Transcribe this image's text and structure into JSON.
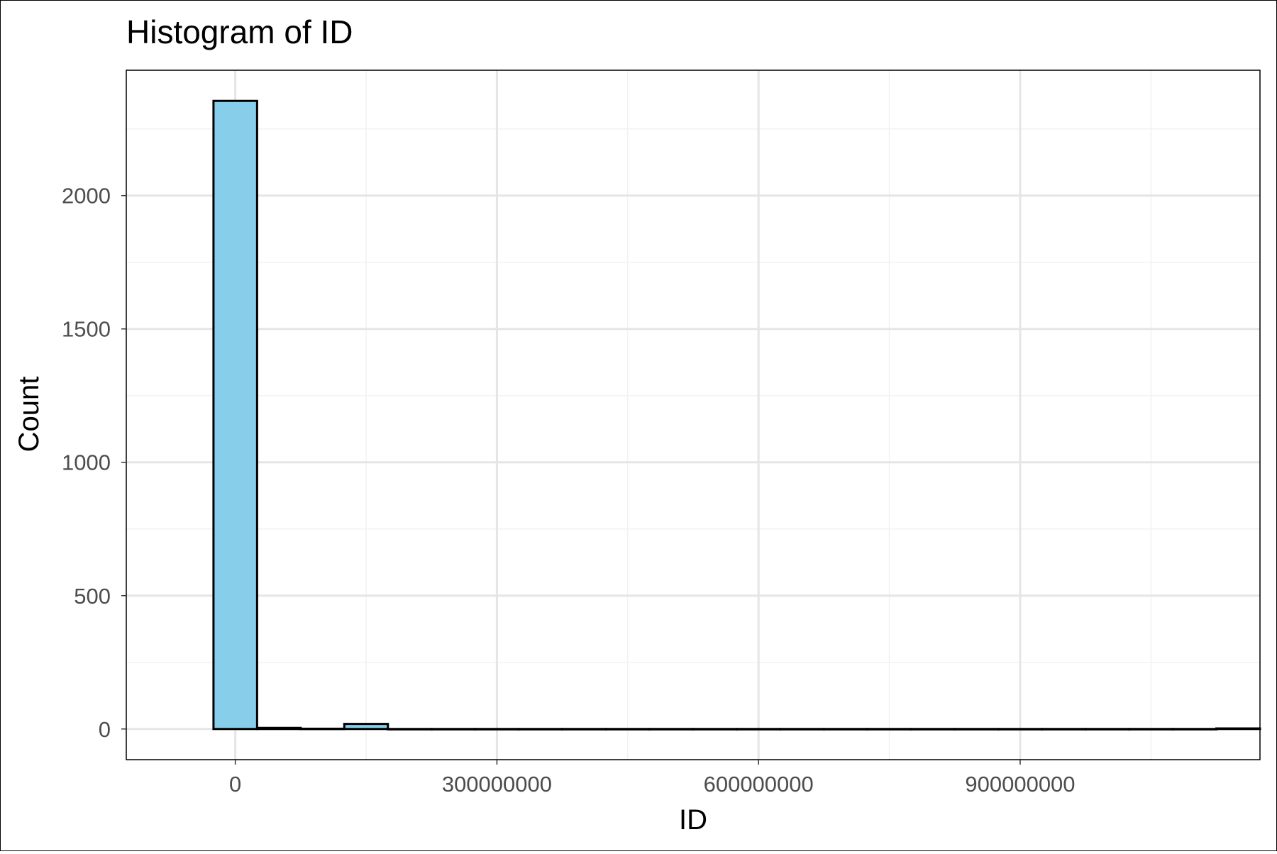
{
  "chart_data": {
    "type": "bar",
    "subtype": "histogram",
    "title": "Histogram of ID",
    "xlabel": "ID",
    "ylabel": "Count",
    "bin_width": 50000000,
    "bins": [
      {
        "x0": -25000000,
        "x1": 25000000,
        "count": 2355
      },
      {
        "x0": 25000000,
        "x1": 75000000,
        "count": 4
      },
      {
        "x0": 75000000,
        "x1": 125000000,
        "count": 1
      },
      {
        "x0": 125000000,
        "x1": 175000000,
        "count": 19
      },
      {
        "x0": 175000000,
        "x1": 225000000,
        "count": 0
      },
      {
        "x0": 225000000,
        "x1": 275000000,
        "count": 0
      },
      {
        "x0": 275000000,
        "x1": 325000000,
        "count": 0
      },
      {
        "x0": 325000000,
        "x1": 375000000,
        "count": 0
      },
      {
        "x0": 375000000,
        "x1": 425000000,
        "count": 0
      },
      {
        "x0": 425000000,
        "x1": 475000000,
        "count": 0
      },
      {
        "x0": 475000000,
        "x1": 525000000,
        "count": 0
      },
      {
        "x0": 525000000,
        "x1": 575000000,
        "count": 0
      },
      {
        "x0": 575000000,
        "x1": 625000000,
        "count": 0
      },
      {
        "x0": 625000000,
        "x1": 675000000,
        "count": 0
      },
      {
        "x0": 675000000,
        "x1": 725000000,
        "count": 0
      },
      {
        "x0": 725000000,
        "x1": 775000000,
        "count": 0
      },
      {
        "x0": 775000000,
        "x1": 825000000,
        "count": 0
      },
      {
        "x0": 825000000,
        "x1": 875000000,
        "count": 0
      },
      {
        "x0": 875000000,
        "x1": 925000000,
        "count": 0
      },
      {
        "x0": 925000000,
        "x1": 975000000,
        "count": 0
      },
      {
        "x0": 975000000,
        "x1": 1025000000,
        "count": 0
      },
      {
        "x0": 1025000000,
        "x1": 1075000000,
        "count": 0
      },
      {
        "x0": 1075000000,
        "x1": 1125000000,
        "count": 0
      },
      {
        "x0": 1125000000,
        "x1": 1175000000,
        "count": 2
      }
    ],
    "xlim": [
      -125000000,
      1175000000
    ],
    "ylim": [
      -115,
      2470
    ],
    "x_ticks": [
      {
        "value": 0,
        "label": "0"
      },
      {
        "value": 300000000,
        "label": "300000000"
      },
      {
        "value": 600000000,
        "label": "600000000"
      },
      {
        "value": 900000000,
        "label": "900000000"
      }
    ],
    "x_minor_ticks": [
      150000000,
      450000000,
      750000000,
      1050000000
    ],
    "y_ticks": [
      {
        "value": 0,
        "label": "0"
      },
      {
        "value": 500,
        "label": "500"
      },
      {
        "value": 1000,
        "label": "1000"
      },
      {
        "value": 1500,
        "label": "1500"
      },
      {
        "value": 2000,
        "label": "2000"
      }
    ],
    "y_minor_ticks": [
      250,
      750,
      1250,
      1750,
      2250
    ],
    "grid": true,
    "colors": {
      "bar_fill": "#87CEEB",
      "bar_stroke": "#000000",
      "grid_major": "#E5E5E5",
      "grid_minor": "#F2F2F2",
      "tick_label": "#4D4D4D",
      "text": "#000000"
    }
  }
}
